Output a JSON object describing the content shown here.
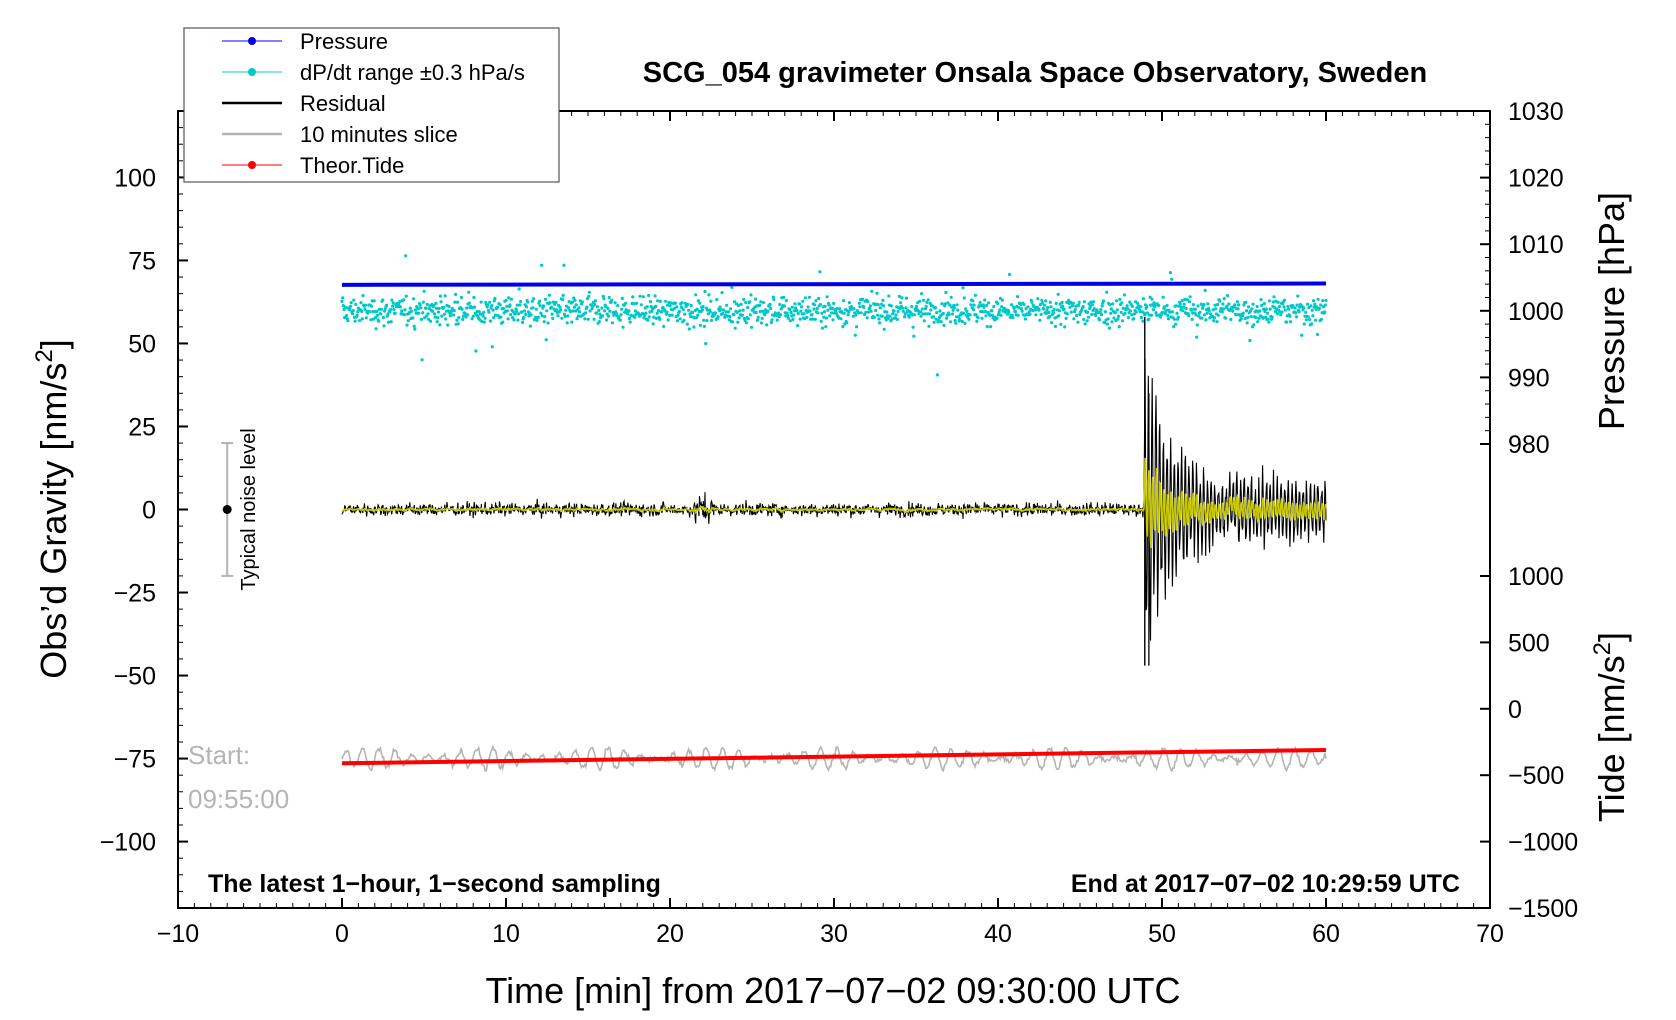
{
  "chart_data": {
    "type": "line",
    "title": "SCG_054 gravimeter Onsala Space Observatory, Sweden",
    "xlabel": "Time [min] from 2017−07−02 09:30:00 UTC",
    "ylabel_left": "Obs’d Gravity [nm/s²]",
    "ylabel_left_text": "Obs’d Gravity [nm/s",
    "ylabel_left_sup": "2",
    "ylabel_left_close": "]",
    "ylabel_right_top": "Pressure [hPa]",
    "ylabel_right_bottom": "Tide [nm/s²]",
    "ylabel_right_bottom_text": "Tide [nm/s",
    "ylabel_right_bottom_sup": "2",
    "ylabel_right_bottom_close": "]",
    "xlim": [
      -10,
      70
    ],
    "ylim_left": [
      -120,
      120
    ],
    "x_ticks": [
      -10,
      0,
      10,
      20,
      30,
      40,
      50,
      60,
      70
    ],
    "x_tick_labels": [
      "−10",
      "0",
      "10",
      "20",
      "30",
      "40",
      "50",
      "60",
      "70"
    ],
    "y_left_ticks": [
      100,
      75,
      50,
      25,
      0,
      -25,
      -50,
      -75,
      -100
    ],
    "y_left_tick_labels": [
      "100",
      "75",
      "50",
      "25",
      "0",
      "−25",
      "−50",
      "−75",
      "−100"
    ],
    "pressure_axis": {
      "ticks": [
        1030,
        1020,
        1010,
        1000,
        990,
        980
      ],
      "tick_labels": [
        "1030",
        "1020",
        "1010",
        "1000",
        "990",
        "980"
      ],
      "range": [
        980,
        1030
      ]
    },
    "tide_axis": {
      "ticks": [
        1000,
        500,
        0,
        -500,
        -1000,
        -1500
      ],
      "tick_labels": [
        "1000",
        "500",
        "0",
        "−500",
        "−1000",
        "−1500"
      ],
      "range": [
        -1500,
        1000
      ]
    },
    "series": [
      {
        "name": "Pressure",
        "axis": "pressure",
        "color": "#0000ee",
        "x": [
          0,
          60
        ],
        "values": [
          1003.9,
          1004.1
        ]
      },
      {
        "name": "dP/dt range ±0.3 hPa/s",
        "axis": "pressure",
        "color": "#00c8c8",
        "center": 1000,
        "spread": 3
      },
      {
        "name": "Residual",
        "axis": "gravity",
        "color": "#000000",
        "baseline": 0,
        "event_start_min": 48.9,
        "event_peak_max": 58,
        "event_peak_min": -47
      },
      {
        "name": "10 minutes slice",
        "axis": "gravity",
        "color": "#b4b4b4",
        "baseline": -75,
        "start_label": "Start:",
        "start_time": "09:55:00"
      },
      {
        "name": "Theor.Tide",
        "axis": "tide",
        "color": "#ff0000",
        "x": [
          0,
          60
        ],
        "values": [
          -410,
          -310
        ]
      }
    ],
    "smoothed_color": "#c8c800",
    "noise_level": {
      "label": "Typical noise level",
      "x": -7,
      "center": 0,
      "half_range": 20
    },
    "note_left": "The latest 1−hour, 1−second sampling",
    "note_right": "End at 2017−07−02 10:29:59 UTC",
    "legend": {
      "placement": "top-left",
      "entries": [
        "Pressure",
        "dP/dt range ±0.3 hPa/s",
        "Residual",
        "10 minutes slice",
        "Theor.Tide"
      ]
    }
  }
}
